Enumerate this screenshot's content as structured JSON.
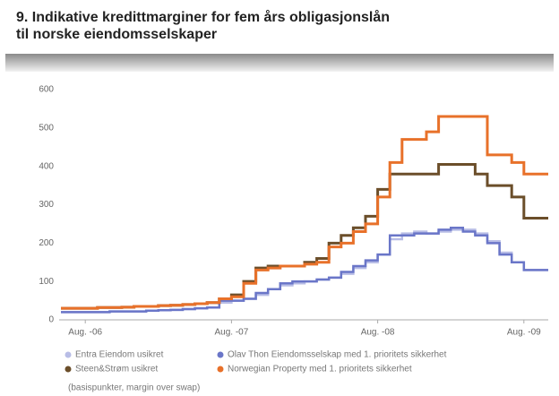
{
  "chart_data": {
    "type": "line",
    "title": [
      "9. Indikative kredittmarginer for fem års obligasjonslån",
      "til norske eiendomsselskaper"
    ],
    "note": "(basispunkter, margin over swap)",
    "x": [
      "2006-06",
      "2006-07",
      "2006-08",
      "2006-09",
      "2006-10",
      "2006-11",
      "2006-12",
      "2007-01",
      "2007-02",
      "2007-03",
      "2007-04",
      "2007-05",
      "2007-06",
      "2007-07",
      "2007-08",
      "2007-09",
      "2007-10",
      "2007-11",
      "2007-12",
      "2008-01",
      "2008-02",
      "2008-03",
      "2008-04",
      "2008-05",
      "2008-06",
      "2008-07",
      "2008-08",
      "2008-09",
      "2008-10",
      "2008-11",
      "2008-12",
      "2009-01",
      "2009-02",
      "2009-03",
      "2009-04",
      "2009-05",
      "2009-06",
      "2009-07",
      "2009-08",
      "2009-09",
      "2009-10"
    ],
    "series": [
      {
        "name": "Entra Eiendom usikret",
        "color": "#b8bde6",
        "values": [
          20,
          20,
          20,
          20,
          22,
          22,
          22,
          24,
          25,
          26,
          28,
          30,
          32,
          45,
          50,
          55,
          65,
          80,
          90,
          95,
          100,
          105,
          110,
          120,
          135,
          150,
          170,
          210,
          225,
          230,
          225,
          230,
          235,
          235,
          225,
          205,
          175,
          150,
          130,
          130,
          130
        ]
      },
      {
        "name": "Olav Thon Eiendomsselskap med 1. prioritets sikkerhet",
        "color": "#6a76c8",
        "values": [
          20,
          20,
          20,
          20,
          22,
          22,
          22,
          24,
          25,
          26,
          28,
          30,
          32,
          50,
          50,
          55,
          70,
          80,
          95,
          100,
          100,
          105,
          110,
          125,
          140,
          155,
          170,
          220,
          220,
          225,
          225,
          235,
          240,
          230,
          220,
          200,
          170,
          150,
          130,
          130,
          130
        ]
      },
      {
        "name": "Steen&Strøm usikret",
        "color": "#6b4e2a",
        "values": [
          30,
          30,
          30,
          32,
          32,
          33,
          35,
          35,
          37,
          38,
          40,
          42,
          45,
          55,
          65,
          100,
          135,
          140,
          140,
          140,
          150,
          160,
          200,
          220,
          240,
          270,
          340,
          380,
          380,
          380,
          380,
          405,
          405,
          405,
          380,
          350,
          350,
          320,
          265,
          265,
          265
        ]
      },
      {
        "name": "Norwegian Property med 1. prioritets sikkerhet",
        "color": "#e8712a",
        "values": [
          30,
          30,
          30,
          32,
          32,
          33,
          35,
          35,
          37,
          38,
          40,
          42,
          45,
          55,
          60,
          95,
          130,
          135,
          140,
          140,
          145,
          150,
          190,
          200,
          230,
          250,
          320,
          410,
          470,
          470,
          490,
          530,
          530,
          530,
          530,
          430,
          430,
          410,
          380,
          380,
          380
        ]
      }
    ],
    "xticks": [
      {
        "value": "2006-08",
        "label": "Aug. -06"
      },
      {
        "value": "2007-08",
        "label": "Aug. -07"
      },
      {
        "value": "2008-08",
        "label": "Aug. -08"
      },
      {
        "value": "2009-08",
        "label": "Aug. -09"
      }
    ],
    "ylim": [
      0,
      600
    ],
    "yticks": [
      0,
      100,
      200,
      300,
      400,
      500,
      600
    ],
    "grid": false
  }
}
